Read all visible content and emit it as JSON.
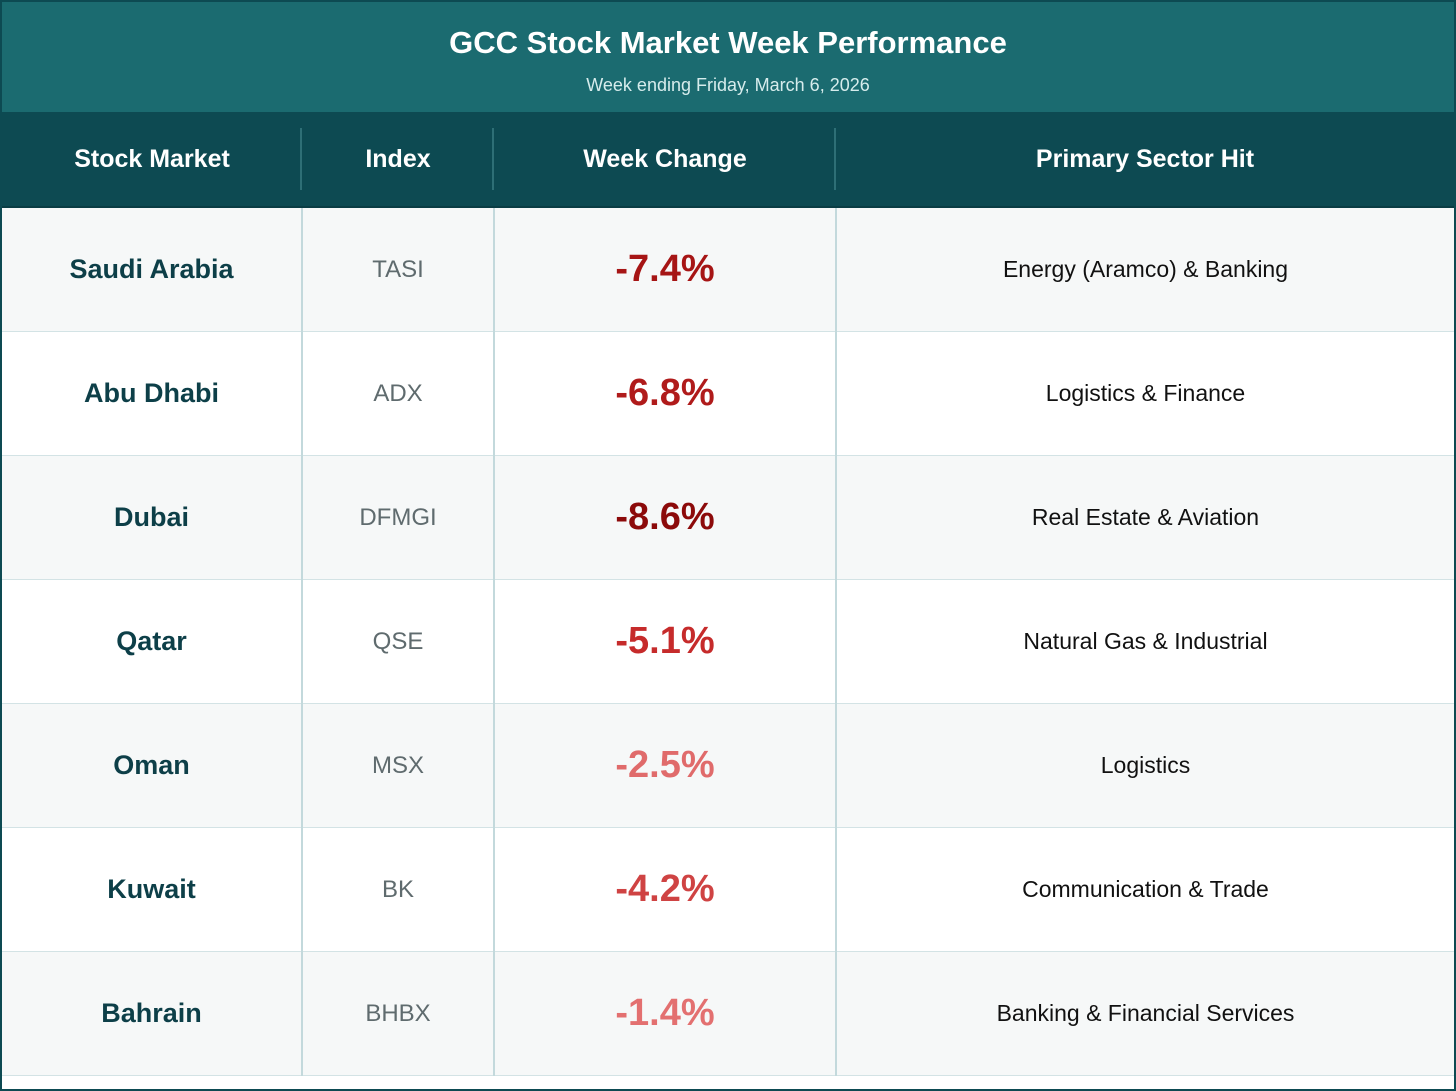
{
  "header": {
    "title": "GCC Stock Market Week Performance",
    "subtitle": "Week ending Friday, March 6, 2026"
  },
  "columns": [
    "Stock Market",
    "Index",
    "Week Change",
    "Primary Sector Hit"
  ],
  "rows": [
    {
      "market": "Saudi Arabia",
      "index": "TASI",
      "change": "-7.4%",
      "sector": "Energy (Aramco) & Banking",
      "change_color": "#a61515"
    },
    {
      "market": "Abu Dhabi",
      "index": "ADX",
      "change": "-6.8%",
      "sector": "Logistics & Finance",
      "change_color": "#b01b1b"
    },
    {
      "market": "Dubai",
      "index": "DFMGI",
      "change": "-8.6%",
      "sector": "Real Estate & Aviation",
      "change_color": "#8c0a0a"
    },
    {
      "market": "Qatar",
      "index": "QSE",
      "change": "-5.1%",
      "sector": "Natural Gas & Industrial",
      "change_color": "#c62b2b"
    },
    {
      "market": "Oman",
      "index": "MSX",
      "change": "-2.5%",
      "sector": "Logistics",
      "change_color": "#e06b6b"
    },
    {
      "market": "Kuwait",
      "index": "BK",
      "change": "-4.2%",
      "sector": "Communication & Trade",
      "change_color": "#cf4343"
    },
    {
      "market": "Bahrain",
      "index": "BHBX",
      "change": "-1.4%",
      "sector": "Banking & Financial Services",
      "change_color": "#e37070"
    }
  ],
  "colors": {
    "title_bar": "#1b6b70",
    "header_row": "#0d4a52"
  }
}
